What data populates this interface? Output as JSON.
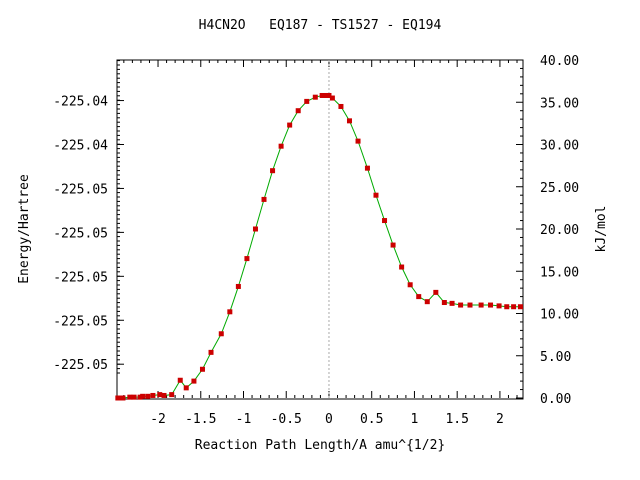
{
  "chart_data": {
    "type": "line",
    "title": "H4CN2O   EQ187 - TS1527 - EQ194",
    "xlabel": "Reaction Path Length/A amu^{1/2}",
    "ylabel_left": "Energy/Hartree",
    "ylabel_right": "kJ/mol",
    "xlim": [
      -2.48,
      2.27
    ],
    "ylim_right": [
      0,
      40
    ],
    "x_ticks": [
      -2,
      -1.5,
      -1,
      -0.5,
      0,
      0.5,
      1,
      1.5,
      2
    ],
    "x_tick_labels": [
      "-2",
      "-1.5",
      "-1",
      "-0.5",
      "0",
      "0.5",
      "1",
      "1.5",
      "2"
    ],
    "right_ticks": [
      0,
      5,
      10,
      15,
      20,
      25,
      30,
      35,
      40
    ],
    "right_tick_labels": [
      "0.00",
      "5.00",
      "10.00",
      "15.00",
      "20.00",
      "25.00",
      "30.00",
      "35.00",
      "40.00"
    ],
    "left_ticks_kj": [
      4.0,
      9.2,
      14.4,
      19.6,
      24.8,
      30.0,
      35.2
    ],
    "left_tick_labels": [
      "-225.05",
      "-225.05",
      "-225.05",
      "-225.05",
      "-225.05",
      "-225.04",
      "-225.04"
    ],
    "ts_marker_x": 0,
    "grid": false,
    "colors": {
      "line": "#00aa00",
      "points": "#cc0000",
      "ts_line": "#aaaaaa",
      "axis": "#000000"
    },
    "series": [
      {
        "x": [
          -2.47,
          -2.44,
          -2.41,
          -2.33,
          -2.28,
          -2.21,
          -2.18,
          -2.12,
          -2.06,
          -1.98,
          -1.93,
          -1.84,
          -1.74,
          -1.67,
          -1.58,
          -1.48,
          -1.38,
          -1.26,
          -1.16,
          -1.06,
          -0.96,
          -0.86,
          -0.76,
          -0.66,
          -0.56,
          -0.46,
          -0.36,
          -0.26,
          -0.16,
          -0.08,
          -0.03,
          0.0,
          0.04,
          0.14,
          0.24,
          0.34,
          0.45,
          0.55,
          0.65,
          0.75,
          0.85,
          0.95,
          1.05,
          1.15,
          1.25,
          1.35,
          1.44,
          1.54,
          1.65,
          1.78,
          1.89,
          1.99,
          2.08,
          2.16,
          2.24
        ],
        "y": [
          0.0,
          0.0,
          0.0,
          0.1,
          0.1,
          0.1,
          0.2,
          0.2,
          0.3,
          0.4,
          0.3,
          0.4,
          2.1,
          1.2,
          2.0,
          3.4,
          5.4,
          7.6,
          10.2,
          13.2,
          16.5,
          20.0,
          23.5,
          26.9,
          29.8,
          32.3,
          34.0,
          35.1,
          35.6,
          35.8,
          35.8,
          35.8,
          35.5,
          34.5,
          32.8,
          30.4,
          27.2,
          24.0,
          21.0,
          18.1,
          15.5,
          13.4,
          12.0,
          11.4,
          12.5,
          11.3,
          11.2,
          11.0,
          11.0,
          11.0,
          11.0,
          10.9,
          10.8,
          10.8,
          10.8
        ]
      }
    ]
  }
}
